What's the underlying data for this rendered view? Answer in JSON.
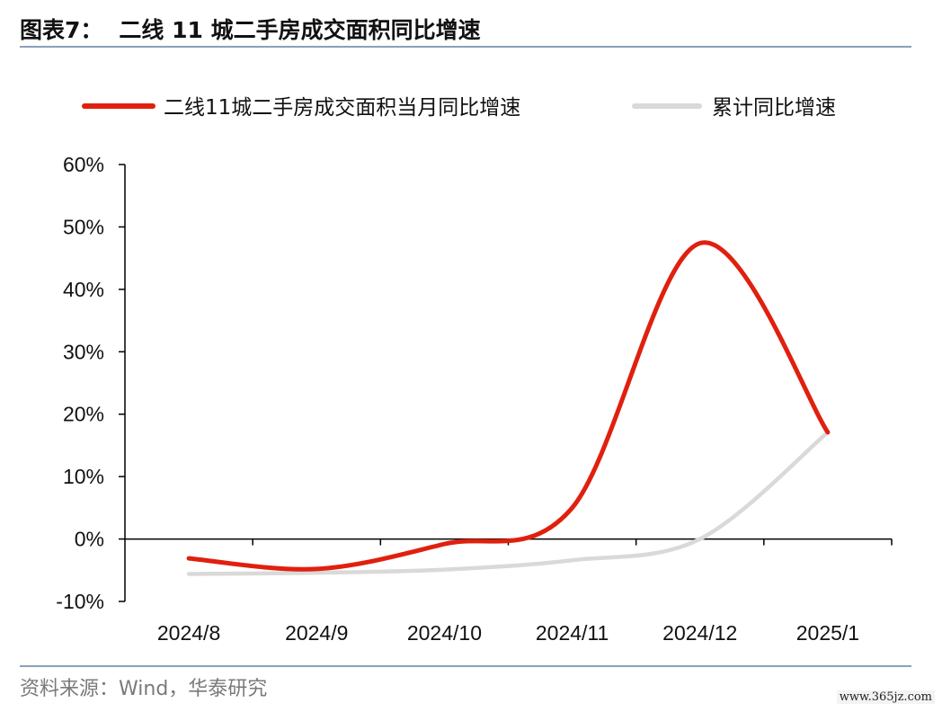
{
  "header": {
    "figure_no": "图表7：",
    "title": "二线 11 城二手房成交面积同比增速"
  },
  "footer": {
    "source": "资料来源：Wind，华泰研究",
    "watermark": "www.365jz.com"
  },
  "chart_data": {
    "type": "line",
    "title": "二线 11 城二手房成交面积同比增速",
    "xlabel": "",
    "ylabel": "",
    "categories": [
      "2024/8",
      "2024/9",
      "2024/10",
      "2024/11",
      "2024/12",
      "2025/1"
    ],
    "x_plot_positions": [
      0.5,
      1.5,
      2.5,
      3.5,
      4.5,
      5.5
    ],
    "ylim": [
      -10,
      60
    ],
    "yticks": [
      -10,
      0,
      10,
      20,
      30,
      40,
      50,
      60
    ],
    "ytick_labels": [
      "-10%",
      "0%",
      "10%",
      "20%",
      "30%",
      "40%",
      "50%",
      "60%"
    ],
    "grid": false,
    "legend_position": "top",
    "series": [
      {
        "name": "二线11城二手房成交面积当月同比增速",
        "color": "#e0200f",
        "points": [
          {
            "x": "2024/8",
            "y": -3.1
          },
          {
            "x": "2024/9",
            "y": -4.8
          },
          {
            "x": "2024/10",
            "y": -0.8
          },
          {
            "x": "2024/11",
            "y": 5.0
          },
          {
            "x": "2024/12",
            "y": 47.4
          },
          {
            "x": "2025/1",
            "y": 17.1
          }
        ]
      },
      {
        "name": "累计同比增速",
        "color": "#d9d9d9",
        "points": [
          {
            "x": "2024/8",
            "y": -5.6
          },
          {
            "x": "2024/9",
            "y": -5.4
          },
          {
            "x": "2024/10",
            "y": -4.9
          },
          {
            "x": "2024/11",
            "y": -3.4
          },
          {
            "x": "2024/12",
            "y": 0.0
          },
          {
            "x": "2025/1",
            "y": 17.1
          }
        ]
      }
    ]
  }
}
